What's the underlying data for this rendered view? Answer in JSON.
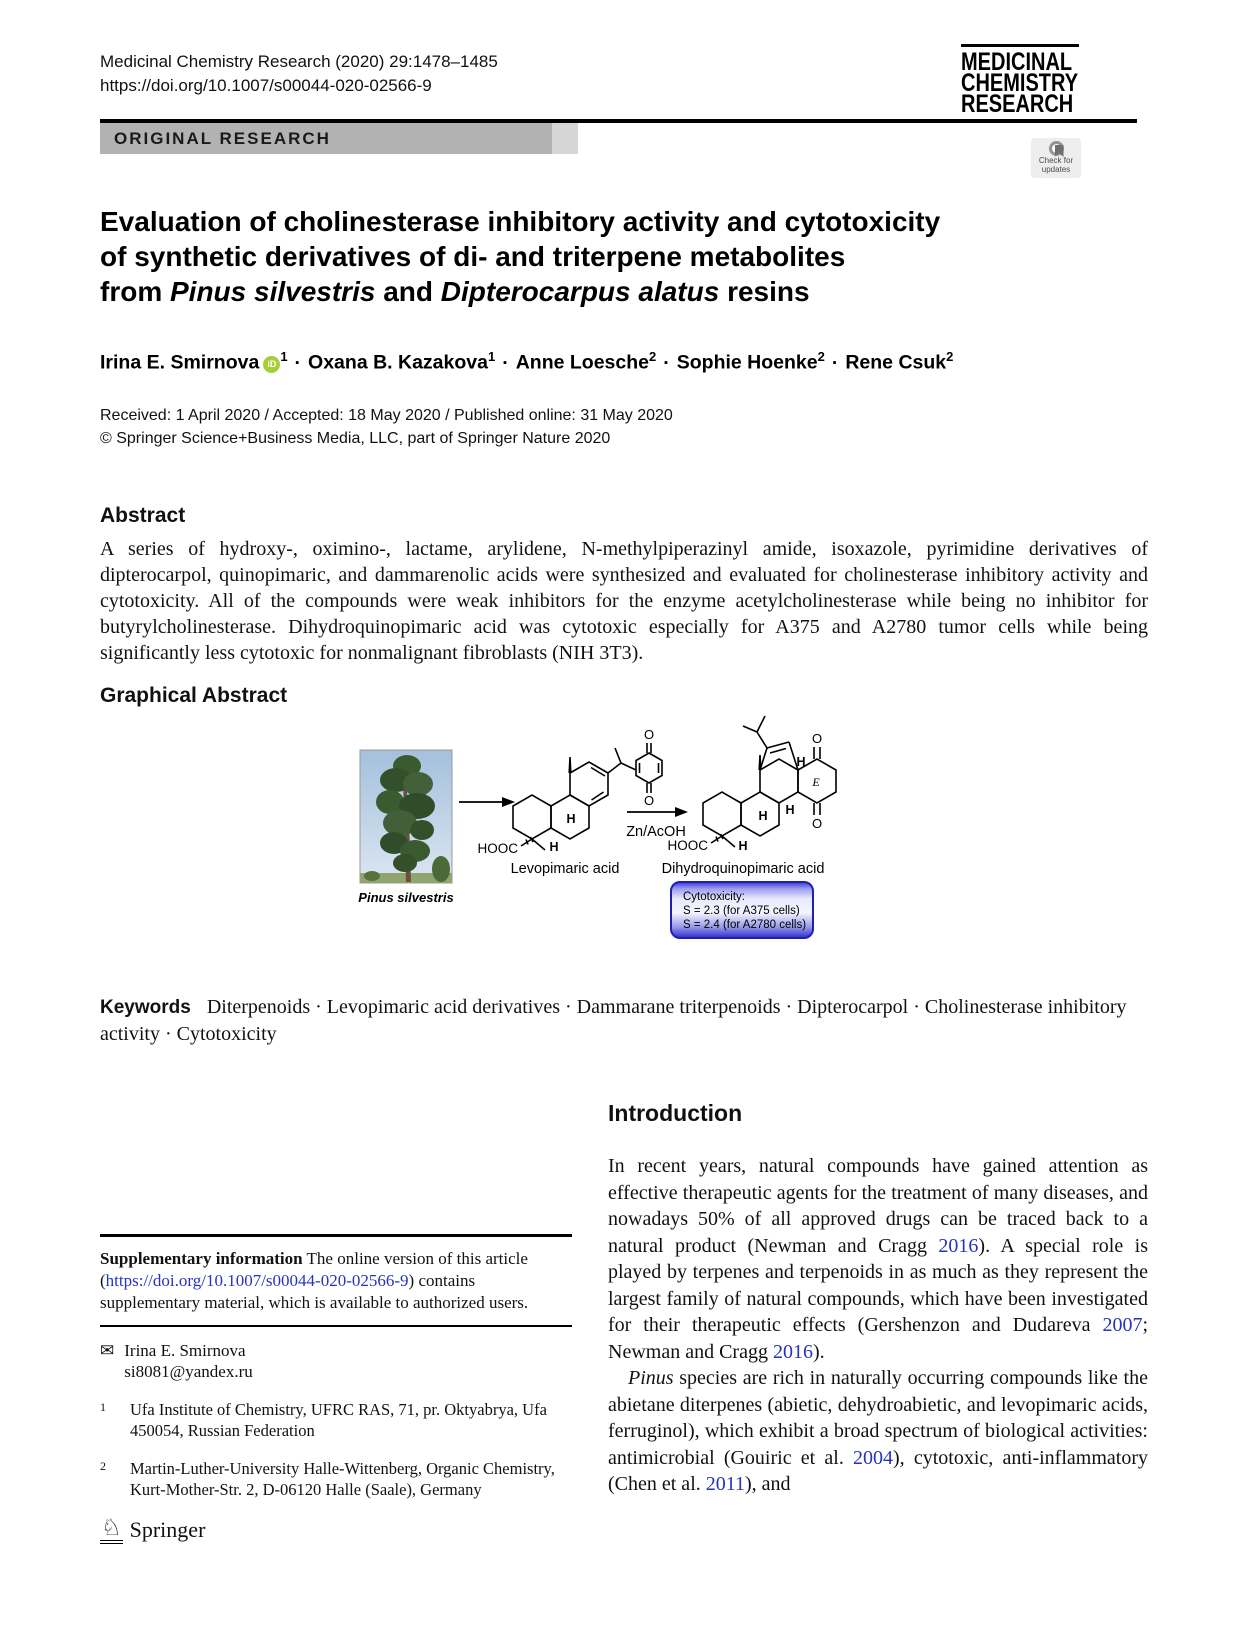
{
  "header": {
    "journal_ref": "Medicinal Chemistry Research (2020) 29:1478–1485",
    "doi": "https://doi.org/10.1007/s00044-020-02566-9",
    "article_type": "ORIGINAL RESEARCH",
    "logo_lines": [
      "MEDICINAL",
      "CHEMISTRY",
      "RESEARCH"
    ],
    "check_for_updates": [
      "Check for",
      "updates"
    ]
  },
  "title": {
    "line1": "Evaluation of cholinesterase inhibitory activity and cytotoxicity",
    "line2": "of synthetic derivatives of di- and triterpene metabolites",
    "line3": [
      {
        "t": "from "
      },
      {
        "t": "Pinus silvestris",
        "s": "italic"
      },
      {
        "t": " and "
      },
      {
        "t": "Dipterocarpus alatus",
        "s": "italic"
      },
      {
        "t": " resins"
      }
    ]
  },
  "authors": {
    "separator": "·",
    "orcid_label": "iD",
    "list": [
      {
        "name": "Irina E. Smirnova",
        "sup": "1"
      },
      {
        "name": "Oxana B. Kazakova",
        "sup": "1"
      },
      {
        "name": "Anne Loesche",
        "sup": "2"
      },
      {
        "name": "Sophie Hoenke",
        "sup": "2"
      },
      {
        "name": "Rene Csuk",
        "sup": "2"
      }
    ]
  },
  "meta": {
    "received_line": "Received: 1 April 2020 / Accepted: 18 May 2020 / Published online: 31 May 2020",
    "copyright_line": "© Springer Science+Business Media, LLC, part of Springer Nature 2020"
  },
  "abstract": {
    "heading": "Abstract",
    "text": "A series of hydroxy-, oximino-, lactame, arylidene, N-methylpiperazinyl amide, isoxazole, pyrimidine derivatives of dipterocarpol, quinopimaric, and dammarenolic acids were synthesized and evaluated for cholinesterase inhibitory activity and cytotoxicity. All of the compounds were weak inhibitors for the enzyme acetylcholinesterase while being no inhibitor for butyrylcholinesterase. Dihydroquinopimaric acid was cytotoxic especially for A375 and A2780 tumor cells while being significantly less cytotoxic for nonmalignant fibroblasts (NIH 3T3)."
  },
  "graphical_abstract": {
    "heading": "Graphical Abstract",
    "tree_caption": "Pinus silvestris",
    "compound1": "Levopimaric acid",
    "compound2": "Dihydroquinopimaric  acid",
    "reagent": "Zn/AcOH",
    "labels": {
      "hooc": "HOOC",
      "h": "H",
      "o": "O",
      "e": "E"
    },
    "cytotox_box": [
      "Cytotoxicity:",
      "S = 2.3 (for A375 cells)",
      "S = 2.4 (for A2780 cells)"
    ]
  },
  "keywords": [
    {
      "t": "Keywords",
      "s": "kw"
    },
    {
      "t": "Diterpenoids · Levopimaric acid derivatives · Dammarane triterpenoids · Dipterocarpol · Cholinesterase inhibitory activity · Cytotoxicity"
    }
  ],
  "introduction": {
    "heading": "Introduction",
    "p1": [
      {
        "t": "In recent years, natural compounds have gained attention as effective therapeutic agents for the treatment of many diseases, and nowadays 50% of all approved drugs can be traced back to a natural product (Newman and Cragg "
      },
      {
        "t": "2016",
        "s": "link"
      },
      {
        "t": "). A special role is played by terpenes and terpenoids in as much as they represent the largest family of natural compounds, which have been investigated for their therapeutic effects (Gershenzon and Dudareva "
      },
      {
        "t": "2007",
        "s": "link"
      },
      {
        "t": "; Newman and Cragg "
      },
      {
        "t": "2016",
        "s": "link"
      },
      {
        "t": ")."
      }
    ],
    "p2": [
      {
        "t": "Pinus",
        "s": "italic"
      },
      {
        "t": " species are rich in naturally occurring compounds like the abietane diterpenes (abietic, dehydroabietic, and levopimaric acids, ferruginol), which exhibit a broad spectrum of biological activities: antimicrobial (Gouiric et al. "
      },
      {
        "t": "2004",
        "s": "link"
      },
      {
        "t": "), cytotoxic, anti-inflammatory (Chen et al. "
      },
      {
        "t": "2011",
        "s": "link"
      },
      {
        "t": "), and"
      }
    ]
  },
  "footnotes": {
    "supplementary": [
      {
        "t": "Supplementary information",
        "s": "bold"
      },
      {
        "t": " The online version of this article ("
      },
      {
        "t": "https://doi.org/10.1007/s00044-020-02566-9",
        "s": "link"
      },
      {
        "t": ") contains supplementary material, which is available to authorized users."
      }
    ],
    "correspondence_name": "Irina E. Smirnova",
    "correspondence_email": "si8081@yandex.ru",
    "affiliations": [
      {
        "sup": "1",
        "text": "Ufa Institute of Chemistry, UFRC RAS, 71, pr. Oktyabrya, Ufa 450054, Russian Federation"
      },
      {
        "sup": "2",
        "text": "Martin-Luther-University Halle-Wittenberg, Organic Chemistry, Kurt-Mother-Str. 2, D-06120 Halle (Saale), Germany"
      }
    ]
  },
  "footer": {
    "publisher": "Springer"
  },
  "colors": {
    "link": "#2533c0",
    "orcid_green": "#a6ce39",
    "banner_gray": "#b2b2b2",
    "cytotox_blue": "#2d2dcc"
  }
}
